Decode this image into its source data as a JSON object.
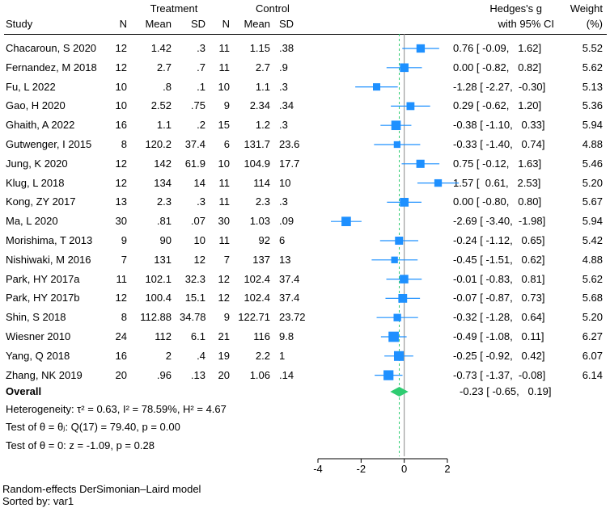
{
  "header": {
    "treatment_label": "Treatment",
    "control_label": "Control",
    "study_label": "Study",
    "n_label": "N",
    "mean_label": "Mean",
    "sd_label": "SD",
    "effect_label_line1": "Hedges's g",
    "effect_label_line2": "with 95% CI",
    "weight_label_line1": "Weight",
    "weight_label_line2": "(%)"
  },
  "studies": [
    {
      "study": "Chacaroun, S 2020",
      "n1": "12",
      "mean1": "1.42",
      "sd1": ".3",
      "n2": "11",
      "mean2": "1.15",
      "sd2": ".38",
      "g": 0.76,
      "lo": -0.09,
      "hi": 1.62,
      "ci": "0.76 [ -0.09,   1.62]",
      "weight": "5.52"
    },
    {
      "study": "Fernandez, M 2018",
      "n1": "12",
      "mean1": "2.7",
      "sd1": ".7",
      "n2": "11",
      "mean2": "2.7",
      "sd2": ".9",
      "g": 0.0,
      "lo": -0.82,
      "hi": 0.82,
      "ci": "0.00 [ -0.82,   0.82]",
      "weight": "5.62"
    },
    {
      "study": "Fu, L 2022",
      "n1": "10",
      "mean1": ".8",
      "sd1": ".1",
      "n2": "10",
      "mean2": "1.1",
      "sd2": ".3",
      "g": -1.28,
      "lo": -2.27,
      "hi": -0.3,
      "ci": "-1.28 [ -2.27,  -0.30]",
      "weight": "5.13"
    },
    {
      "study": "Gao, H 2020",
      "n1": "10",
      "mean1": "2.52",
      "sd1": ".75",
      "n2": "9",
      "mean2": "2.34",
      "sd2": ".34",
      "g": 0.29,
      "lo": -0.62,
      "hi": 1.2,
      "ci": "0.29 [ -0.62,   1.20]",
      "weight": "5.36"
    },
    {
      "study": "Ghaith, A 2022",
      "n1": "16",
      "mean1": "1.1",
      "sd1": ".2",
      "n2": "15",
      "mean2": "1.2",
      "sd2": ".3",
      "g": -0.38,
      "lo": -1.1,
      "hi": 0.33,
      "ci": "-0.38 [ -1.10,   0.33]",
      "weight": "5.94"
    },
    {
      "study": "Gutwenger, I 2015",
      "n1": "8",
      "mean1": "120.2",
      "sd1": "37.4",
      "n2": "6",
      "mean2": "131.7",
      "sd2": "23.6",
      "g": -0.33,
      "lo": -1.4,
      "hi": 0.74,
      "ci": "-0.33 [ -1.40,   0.74]",
      "weight": "4.88"
    },
    {
      "study": "Jung, K 2020",
      "n1": "12",
      "mean1": "142",
      "sd1": "61.9",
      "n2": "10",
      "mean2": "104.9",
      "sd2": "17.7",
      "g": 0.75,
      "lo": -0.12,
      "hi": 1.63,
      "ci": "0.75 [ -0.12,   1.63]",
      "weight": "5.46"
    },
    {
      "study": "Klug, L 2018",
      "n1": "12",
      "mean1": "134",
      "sd1": "14",
      "n2": "11",
      "mean2": "114",
      "sd2": "10",
      "g": 1.57,
      "lo": 0.61,
      "hi": 2.53,
      "ci": "1.57 [  0.61,   2.53]",
      "weight": "5.20"
    },
    {
      "study": "Kong, ZY 2017",
      "n1": "13",
      "mean1": "2.3",
      "sd1": ".3",
      "n2": "11",
      "mean2": "2.3",
      "sd2": ".3",
      "g": 0.0,
      "lo": -0.8,
      "hi": 0.8,
      "ci": "0.00 [ -0.80,   0.80]",
      "weight": "5.67"
    },
    {
      "study": "Ma, L 2020",
      "n1": "30",
      "mean1": ".81",
      "sd1": ".07",
      "n2": "30",
      "mean2": "1.03",
      "sd2": ".09",
      "g": -2.69,
      "lo": -3.4,
      "hi": -1.98,
      "ci": "-2.69 [ -3.40,  -1.98]",
      "weight": "5.94"
    },
    {
      "study": "Morishima, T 2013",
      "n1": "9",
      "mean1": "90",
      "sd1": "10",
      "n2": "11",
      "mean2": "92",
      "sd2": "6",
      "g": -0.24,
      "lo": -1.12,
      "hi": 0.65,
      "ci": "-0.24 [ -1.12,   0.65]",
      "weight": "5.42"
    },
    {
      "study": "Nishiwaki, M 2016",
      "n1": "7",
      "mean1": "131",
      "sd1": "12",
      "n2": "7",
      "mean2": "137",
      "sd2": "13",
      "g": -0.45,
      "lo": -1.51,
      "hi": 0.62,
      "ci": "-0.45 [ -1.51,   0.62]",
      "weight": "4.88"
    },
    {
      "study": "Park, HY 2017a",
      "n1": "11",
      "mean1": "102.1",
      "sd1": "32.3",
      "n2": "12",
      "mean2": "102.4",
      "sd2": "37.4",
      "g": -0.01,
      "lo": -0.83,
      "hi": 0.81,
      "ci": "-0.01 [ -0.83,   0.81]",
      "weight": "5.62"
    },
    {
      "study": "Park, HY 2017b",
      "n1": "12",
      "mean1": "100.4",
      "sd1": "15.1",
      "n2": "12",
      "mean2": "102.4",
      "sd2": "37.4",
      "g": -0.07,
      "lo": -0.87,
      "hi": 0.73,
      "ci": "-0.07 [ -0.87,   0.73]",
      "weight": "5.68"
    },
    {
      "study": "Shin, S 2018",
      "n1": "8",
      "mean1": "112.88",
      "sd1": "34.78",
      "n2": "9",
      "mean2": "122.71",
      "sd2": "23.72",
      "g": -0.32,
      "lo": -1.28,
      "hi": 0.64,
      "ci": "-0.32 [ -1.28,   0.64]",
      "weight": "5.20"
    },
    {
      "study": "Wiesner 2010",
      "n1": "24",
      "mean1": "112",
      "sd1": "6.1",
      "n2": "21",
      "mean2": "116",
      "sd2": "9.8",
      "g": -0.49,
      "lo": -1.08,
      "hi": 0.11,
      "ci": "-0.49 [ -1.08,   0.11]",
      "weight": "6.27"
    },
    {
      "study": "Yang, Q 2018",
      "n1": "16",
      "mean1": "2",
      "sd1": ".4",
      "n2": "19",
      "mean2": "2.2",
      "sd2": "1",
      "g": -0.25,
      "lo": -0.92,
      "hi": 0.42,
      "ci": "-0.25 [ -0.92,   0.42]",
      "weight": "6.07"
    },
    {
      "study": "Zhang, NK 2019",
      "n1": "20",
      "mean1": ".96",
      "sd1": ".13",
      "n2": "20",
      "mean2": "1.06",
      "sd2": ".14",
      "g": -0.73,
      "lo": -1.37,
      "hi": -0.08,
      "ci": "-0.73 [ -1.37,  -0.08]",
      "weight": "6.14"
    }
  ],
  "overall": {
    "label": "Overall",
    "g": -0.23,
    "lo": -0.65,
    "hi": 0.19,
    "ci": "-0.23 [ -0.65,   0.19]",
    "heterogeneity": "Heterogeneity: τ² = 0.63, I² = 78.59%, H² = 4.67",
    "test_theta_i": "Test of θ = θⱼ: Q(17) = 79.40, p = 0.00",
    "test_theta_0": "Test of θ = 0: z = -1.09, p = 0.28"
  },
  "footer": {
    "model": "Random-effects DerSimonian–Laird model",
    "sorted": "Sorted by: var1"
  },
  "chart_data": {
    "type": "forest",
    "xlim": [
      -4,
      2
    ],
    "xticks": [
      -4,
      -2,
      0,
      2
    ],
    "tick_labels": [
      "-4",
      "-2",
      "0",
      "2"
    ],
    "reference_value": 0,
    "overall_effect_line": -0.23,
    "marker_color": "#1e90ff",
    "diamond_color": "#2ecc71",
    "ci_color": "#1e90ff"
  }
}
